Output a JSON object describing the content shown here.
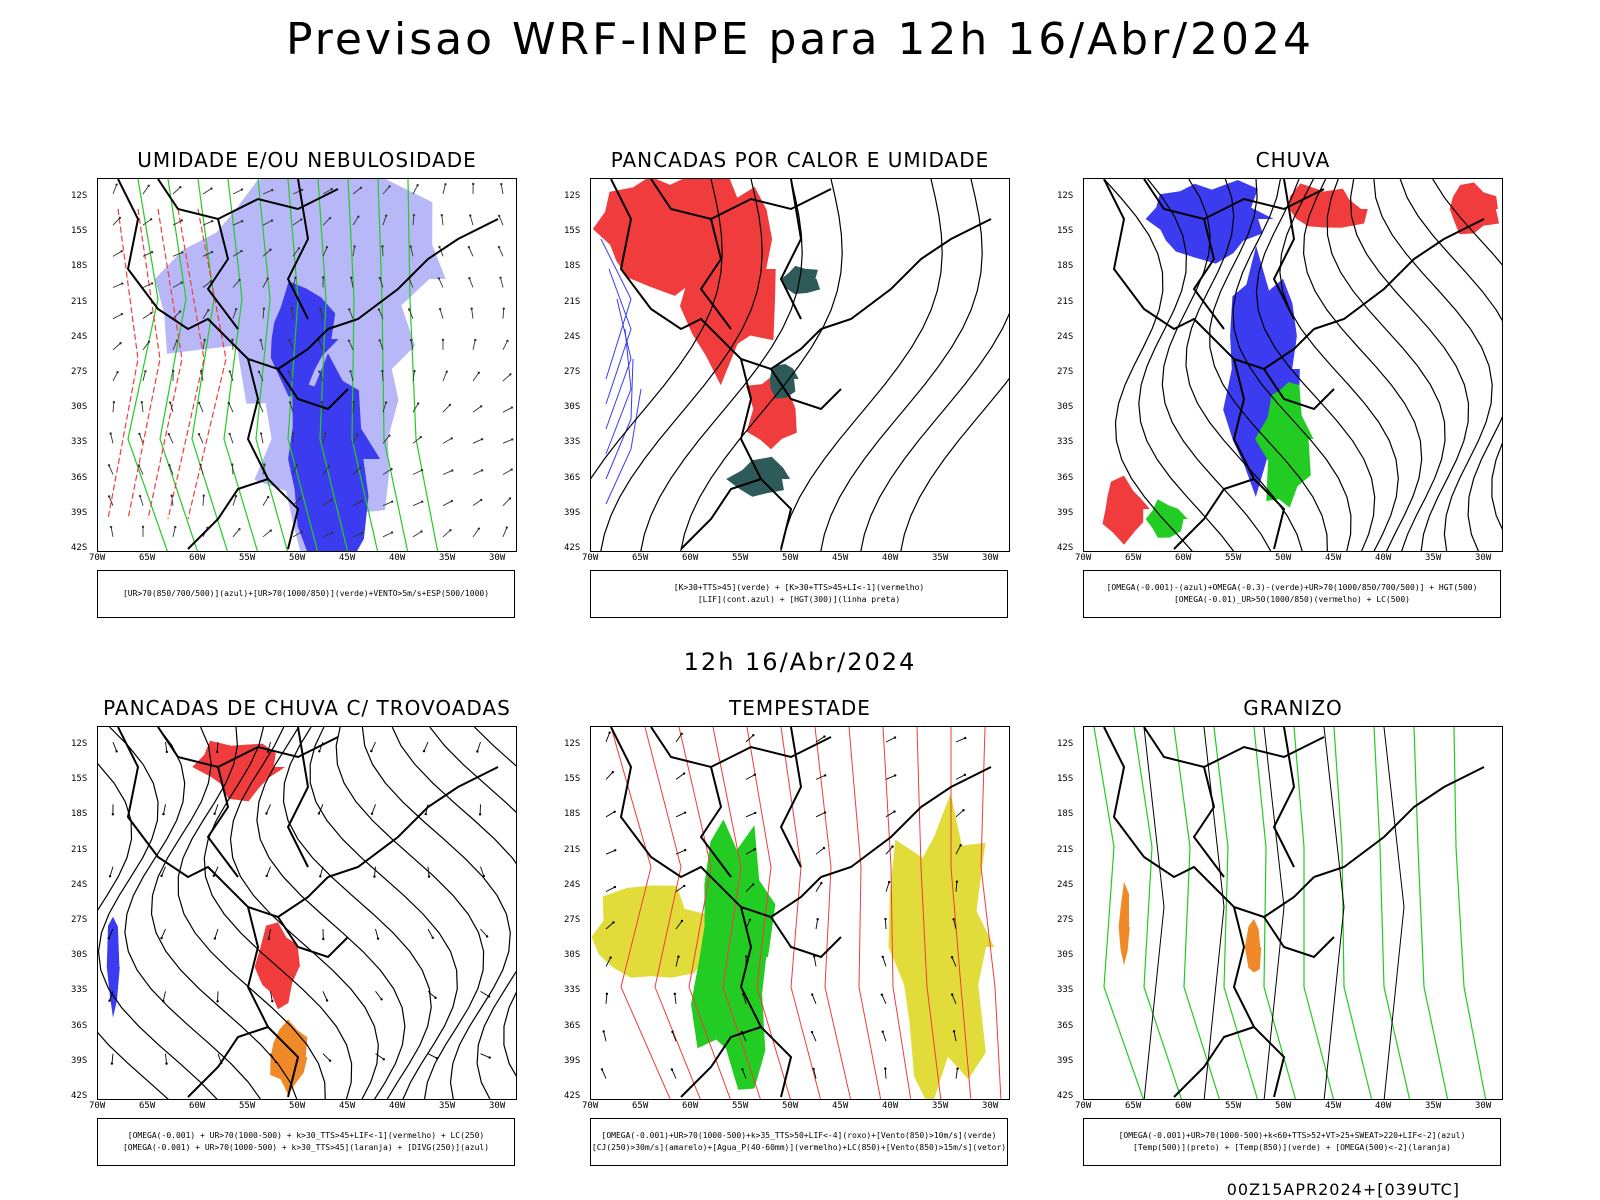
{
  "title": "Previsao WRF-INPE  para 12h 16/Abr/2024",
  "mid_title": "12h 16/Abr/2024",
  "footer": "00Z15APR2024+[039UTC]",
  "lat_labels": [
    "12S",
    "15S",
    "18S",
    "21S",
    "24S",
    "27S",
    "30S",
    "33S",
    "36S",
    "39S",
    "42S"
  ],
  "lon_labels": [
    "70W",
    "65W",
    "60W",
    "55W",
    "50W",
    "45W",
    "40W",
    "35W",
    "30W"
  ],
  "panels": [
    {
      "title": "UMIDADE E/OU NEBULOSIDADE",
      "legend": [
        "[UR>70(850/700/500)](azul)+[UR>70(1000/850)](verde)+VENTO>5m/s+ESP(500/1000)"
      ],
      "style": "humidity"
    },
    {
      "title": "PANCADAS POR CALOR E UMIDADE",
      "legend": [
        "[K>30+TTS>45](verde) + [K>30+TTS>45+LI<-1](vermelho)",
        "[LIF](cont.azul) + [HGT(300)](linha preta)"
      ],
      "style": "heat"
    },
    {
      "title": "CHUVA",
      "legend": [
        "[OMEGA(-0.001)-(azul)+OMEGA(-0.3)-(verde)+UR>70(1000/850/700/500)] + HGT(500)",
        "[OMEGA(-0.01)_UR>50(1000/850)(vermelho) + LC(500)"
      ],
      "style": "rain"
    },
    {
      "title": "PANCADAS DE CHUVA C/ TROVOADAS",
      "legend": [
        "[OMEGA(-0.001) + UR>70(1000-500) + k>30_TTS>45+LIF<-1](vermelho) + LC(250)",
        "[OMEGA(-0.001) + UR>70(1000-500) + k>30_TTS>45](laranja) + [DIVG(250)](azul)"
      ],
      "style": "thunder"
    },
    {
      "title": "TEMPESTADE",
      "legend": [
        "[OMEGA(-0.001)+UR>70(1000-500)+k>35_TTS>50+LIF<-4](roxo)+[Vento(850)>10m/s](verde)",
        "[CJ(250)>30m/s](amarelo)+[Agua_P(40-60mm)](vermelho)+LC(850)+[Vento(850)>15m/s](vetor)"
      ],
      "style": "storm"
    },
    {
      "title": "GRANIZO",
      "legend": [
        "[OMEGA(-0.001)+UR>70(1000-500)+k<60+TTS>52+VT>25+SWEAT>220+LIF<-2](azul)",
        "[Temp(500)](preto) + [Temp(850)](verde) + [OMEGA(500)<-2](laranja)"
      ],
      "style": "hail"
    }
  ],
  "colors": {
    "blue": "#3b3bf0",
    "lightblue": "#b8b8f8",
    "green": "#22cc22",
    "red": "#f03c3c",
    "darkteal": "#2e5a5a",
    "yellow": "#e2dc3a",
    "orange": "#f08a28"
  }
}
